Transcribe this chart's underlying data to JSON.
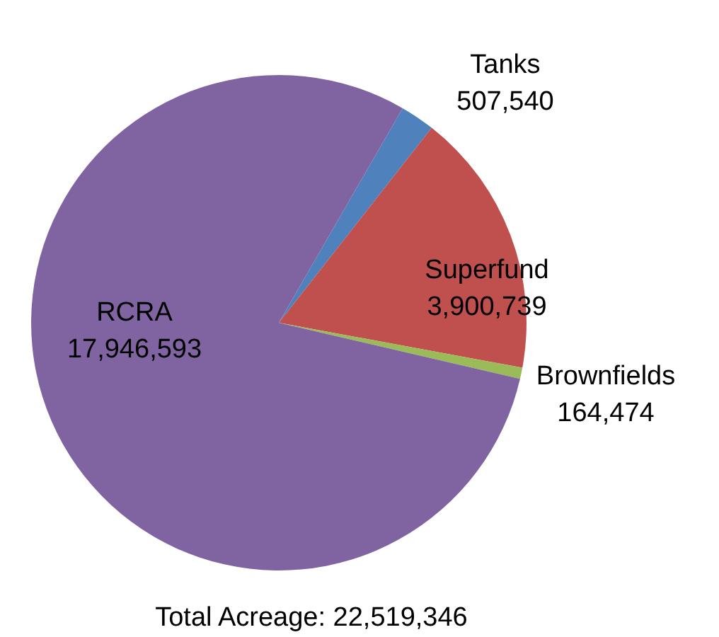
{
  "chart_data": {
    "type": "pie",
    "categories": [
      "Tanks",
      "Superfund",
      "Brownfields",
      "RCRA"
    ],
    "values": [
      507540,
      3900739,
      164474,
      17946593
    ],
    "value_labels": [
      "507,540",
      "3,900,739",
      "164,474",
      "17,946,593"
    ],
    "colors": [
      "#4f81bd",
      "#c0504d",
      "#9bbb59",
      "#8064a2"
    ],
    "annotations": [
      "Total Acreage: 22,519,346"
    ]
  }
}
